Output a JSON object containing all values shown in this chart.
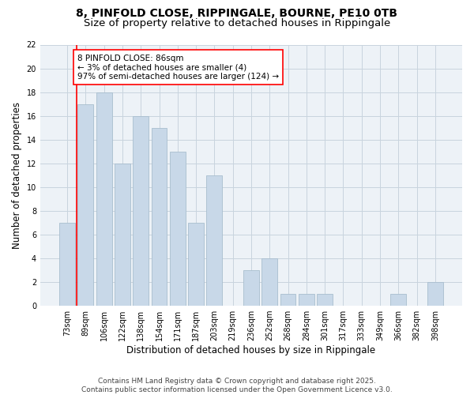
{
  "title_line1": "8, PINFOLD CLOSE, RIPPINGALE, BOURNE, PE10 0TB",
  "title_line2": "Size of property relative to detached houses in Rippingale",
  "xlabel": "Distribution of detached houses by size in Rippingale",
  "ylabel": "Number of detached properties",
  "categories": [
    "73sqm",
    "89sqm",
    "106sqm",
    "122sqm",
    "138sqm",
    "154sqm",
    "171sqm",
    "187sqm",
    "203sqm",
    "219sqm",
    "236sqm",
    "252sqm",
    "268sqm",
    "284sqm",
    "301sqm",
    "317sqm",
    "333sqm",
    "349sqm",
    "366sqm",
    "382sqm",
    "398sqm"
  ],
  "values": [
    7,
    17,
    18,
    12,
    16,
    15,
    13,
    7,
    11,
    0,
    3,
    4,
    1,
    1,
    1,
    0,
    0,
    0,
    1,
    0,
    2
  ],
  "bar_color": "#c8d8e8",
  "bar_edge_color": "#a8bece",
  "ylim": [
    0,
    22
  ],
  "yticks": [
    0,
    2,
    4,
    6,
    8,
    10,
    12,
    14,
    16,
    18,
    20,
    22
  ],
  "annotation_text": "8 PINFOLD CLOSE: 86sqm\n← 3% of detached houses are smaller (4)\n97% of semi-detached houses are larger (124) →",
  "vline_x": 0.5,
  "footer_text": "Contains HM Land Registry data © Crown copyright and database right 2025.\nContains public sector information licensed under the Open Government Licence v3.0.",
  "background_color": "#edf2f7",
  "grid_color": "#c8d4de",
  "title_fontsize": 10,
  "subtitle_fontsize": 9.5,
  "axis_label_fontsize": 8.5,
  "tick_fontsize": 7,
  "annotation_fontsize": 7.5,
  "footer_fontsize": 6.5
}
